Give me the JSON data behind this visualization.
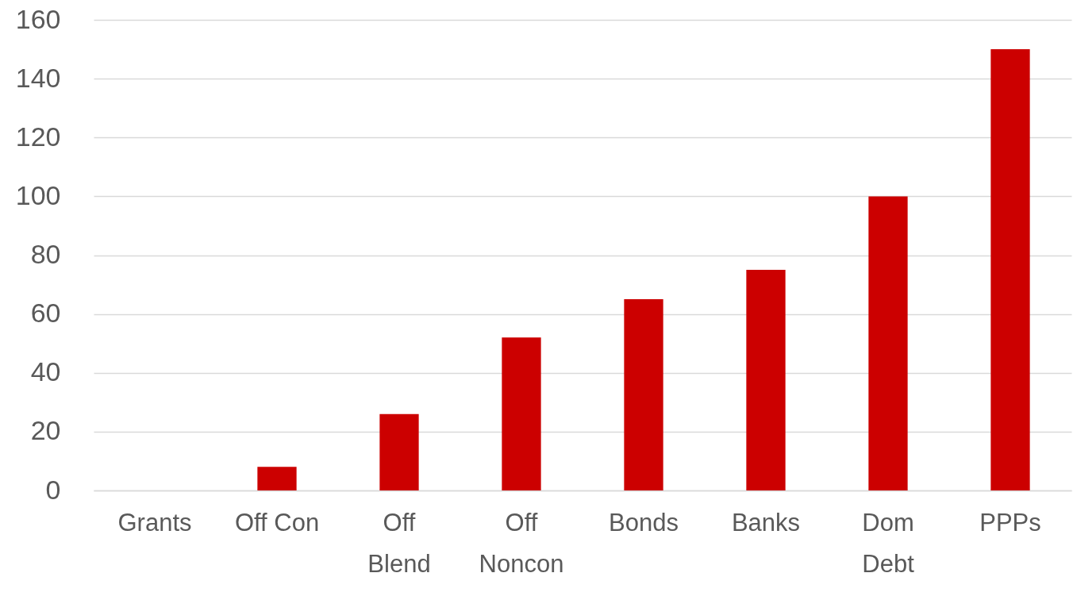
{
  "chart_data": {
    "type": "bar",
    "categories": [
      "Grants",
      "Off Con",
      "Off Blend",
      "Off Noncon",
      "Bonds",
      "Banks",
      "Dom Debt",
      "PPPs"
    ],
    "values": [
      0,
      8,
      26,
      52,
      65,
      75,
      100,
      150
    ],
    "color": "#cc0000",
    "ylim": [
      0,
      160
    ],
    "yticks": [
      0,
      20,
      40,
      60,
      80,
      100,
      120,
      140,
      160
    ],
    "grid": "y"
  }
}
